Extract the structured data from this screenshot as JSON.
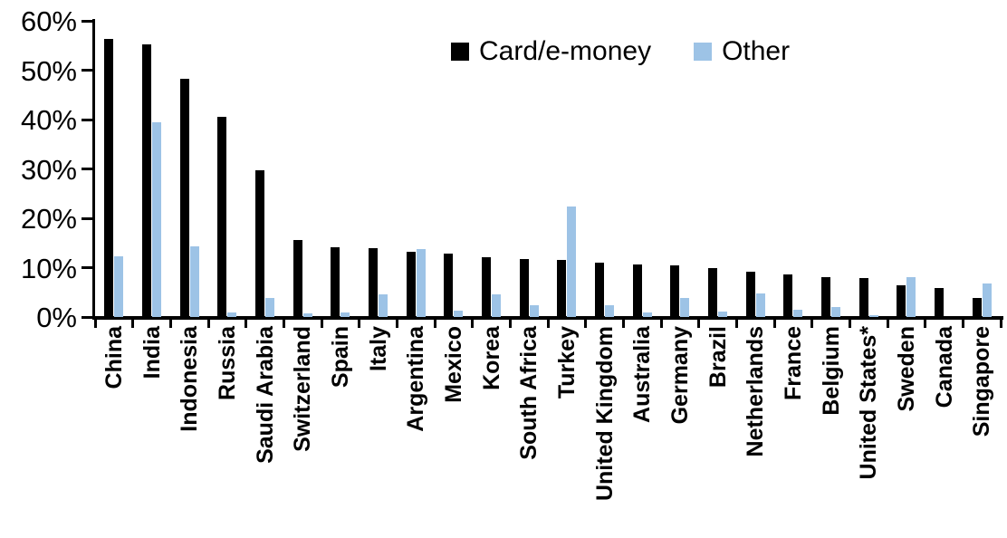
{
  "chart_data": {
    "type": "bar",
    "title": "",
    "xlabel": "",
    "ylabel": "",
    "ylim": [
      0,
      60
    ],
    "yticks": [
      "0%",
      "10%",
      "20%",
      "30%",
      "40%",
      "50%",
      "60%"
    ],
    "ytick_values": [
      0,
      10,
      20,
      30,
      40,
      50,
      60
    ],
    "grid": "off",
    "legend_position": "top-center",
    "categories": [
      "China",
      "India",
      "Indonesia",
      "Russia",
      "Saudi Arabia",
      "Switzerland",
      "Spain",
      "Italy",
      "Argentina",
      "Mexico",
      "Korea",
      "South Africa",
      "Turkey",
      "United Kingdom",
      "Australia",
      "Germany",
      "Brazil",
      "Netherlands",
      "France",
      "Belgium",
      "United States*",
      "Sweden",
      "Canada",
      "Singapore"
    ],
    "series": [
      {
        "name": "Card/e-money",
        "color": "#000000",
        "values": [
          56.3,
          55.2,
          48.3,
          40.5,
          29.8,
          15.6,
          14.1,
          14.0,
          13.3,
          12.9,
          12.2,
          11.7,
          11.5,
          11.0,
          10.7,
          10.5,
          9.9,
          9.2,
          8.6,
          8.1,
          7.9,
          6.5,
          5.9,
          3.9
        ]
      },
      {
        "name": "Other",
        "color": "#9DC3E6",
        "values": [
          12.3,
          39.5,
          14.4,
          0.9,
          3.8,
          0.7,
          0.9,
          4.6,
          13.8,
          1.3,
          4.5,
          2.3,
          22.4,
          2.3,
          1.0,
          3.8,
          1.1,
          4.8,
          1.4,
          2.0,
          0.3,
          8.1,
          0.0,
          6.7
        ]
      }
    ]
  }
}
